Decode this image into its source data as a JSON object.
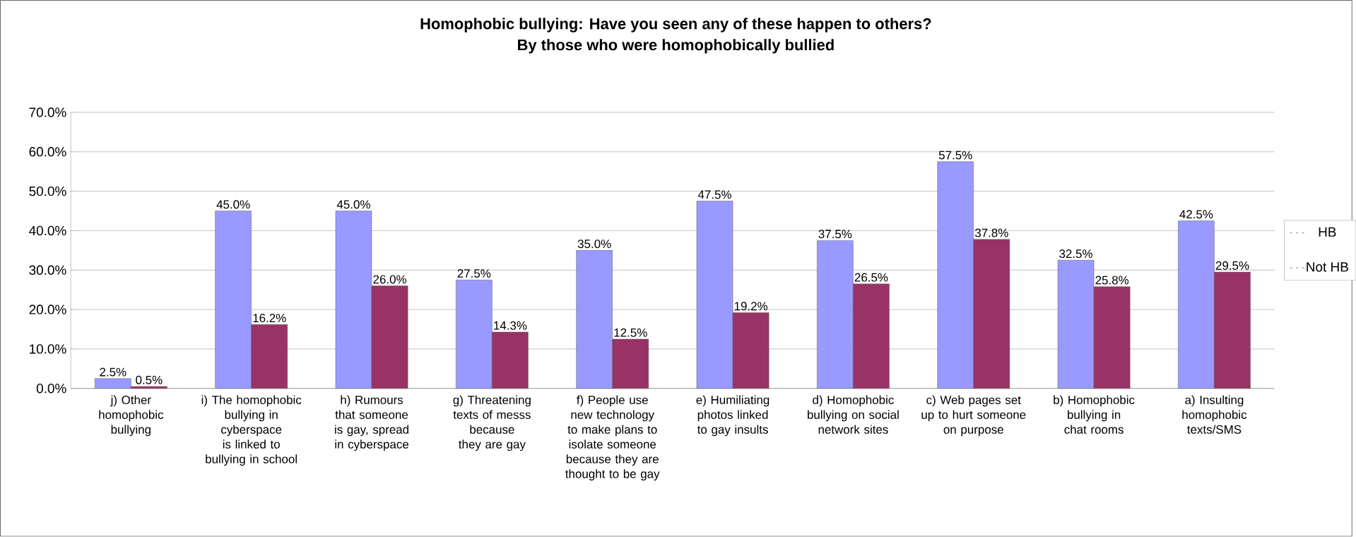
{
  "chart_data": {
    "type": "bar",
    "title": "Homophobic bullying: Have you seen any of these happen to others?",
    "subtitle": "By those who were homophobically bullied",
    "categories": [
      "j) Other homophobic bullying",
      "i) The homophobic bullying in cyberspace is linked to bullying in school",
      "h) Rumours that someone is gay, spread in cyberspace",
      "g) Threatening texts of messs because they are gay",
      "f) People use new technology to make plans to isolate someone because they are thought to be gay",
      "e) Humiliating photos linked to gay insults",
      "d) Homophobic bullying on social network sites",
      "c) Web pages set up to hurt someone on purpose",
      "b) Homophobic bullying in chat rooms",
      "a) Insulting homophobic texts/SMS"
    ],
    "series": [
      {
        "name": "HB",
        "color": "#9999ff",
        "values": [
          2.5,
          45.0,
          45.0,
          27.5,
          35.0,
          47.5,
          37.5,
          57.5,
          32.5,
          42.5
        ],
        "value_labels": [
          "2.5%",
          "45.0%",
          "45.0%",
          "27.5%",
          "35.0%",
          "47.5%",
          "37.5%",
          "57.5%",
          "32.5%",
          "42.5%"
        ]
      },
      {
        "name": "Not HB",
        "color": "#993366",
        "values": [
          0.5,
          16.2,
          26.0,
          14.3,
          12.5,
          19.2,
          26.5,
          37.8,
          25.8,
          29.5
        ],
        "value_labels": [
          "0.5%",
          "16.2%",
          "26.0%",
          "14.3%",
          "12.5%",
          "19.2%",
          "26.5%",
          "37.8%",
          "25.8%",
          "29.5%"
        ]
      }
    ],
    "ylim": [
      0,
      70
    ],
    "yticks": [
      {
        "value": 0,
        "label": "0.0%"
      },
      {
        "value": 10,
        "label": "10.0%"
      },
      {
        "value": 20,
        "label": "20.0%"
      },
      {
        "value": 30,
        "label": "30.0%"
      },
      {
        "value": 40,
        "label": "40.0%"
      },
      {
        "value": 50,
        "label": "50.0%"
      },
      {
        "value": 60,
        "label": "60.0%"
      },
      {
        "value": 70,
        "label": "70.0%"
      }
    ],
    "grid": "y",
    "legend": "right"
  }
}
